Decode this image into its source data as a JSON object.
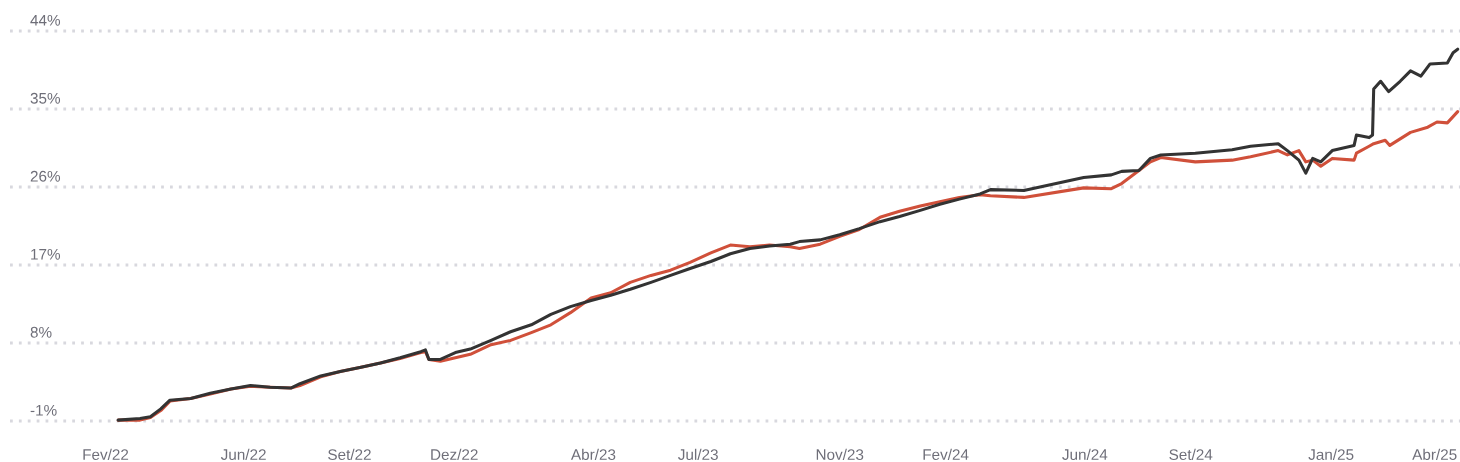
{
  "chart_data": {
    "type": "line",
    "xlim": [
      "2021-11-10",
      "2025-04-23"
    ],
    "xticks": [
      {
        "value": "2022-02-01",
        "label": "Fev/22"
      },
      {
        "value": "2022-06-01",
        "label": "Jun/22"
      },
      {
        "value": "2022-09-01",
        "label": "Set/22"
      },
      {
        "value": "2022-12-01",
        "label": "Dez/22"
      },
      {
        "value": "2023-04-01",
        "label": "Abr/23"
      },
      {
        "value": "2023-07-01",
        "label": "Jul/23"
      },
      {
        "value": "2023-11-01",
        "label": "Nov/23"
      },
      {
        "value": "2024-02-01",
        "label": "Fev/24"
      },
      {
        "value": "2024-06-01",
        "label": "Jun/24"
      },
      {
        "value": "2024-09-01",
        "label": "Set/24"
      },
      {
        "value": "2025-01-01",
        "label": "Jan/25"
      },
      {
        "value": "2025-04-01",
        "label": "Abr/25"
      }
    ],
    "ylim": [
      -1,
      44
    ],
    "yticks": [
      {
        "value": -1,
        "label": "-1%"
      },
      {
        "value": 8,
        "label": "8%"
      },
      {
        "value": 17,
        "label": "17%"
      },
      {
        "value": 26,
        "label": "26%"
      },
      {
        "value": 35,
        "label": "35%"
      },
      {
        "value": 44,
        "label": "44%"
      }
    ],
    "grid": "y",
    "line_style": "solid",
    "series": [
      {
        "color": "#d0503a",
        "x": [
          "2022-02-12",
          "2022-03-03",
          "2022-03-12",
          "2022-03-21",
          "2022-03-29",
          "2022-04-16",
          "2022-05-03",
          "2022-05-21",
          "2022-06-07",
          "2022-06-24",
          "2022-07-12",
          "2022-07-20",
          "2022-08-07",
          "2022-08-24",
          "2022-09-11",
          "2022-09-28",
          "2022-10-15",
          "2022-11-02",
          "2022-11-06",
          "2022-11-09",
          "2022-11-19",
          "2022-12-02",
          "2022-12-15",
          "2023-01-02",
          "2023-01-19",
          "2023-02-06",
          "2023-02-23",
          "2023-03-12",
          "2023-03-30",
          "2023-04-16",
          "2023-05-03",
          "2023-05-21",
          "2023-06-07",
          "2023-06-24",
          "2023-07-12",
          "2023-07-29",
          "2023-08-15",
          "2023-09-01",
          "2023-09-19",
          "2023-09-27",
          "2023-10-15",
          "2023-11-01",
          "2023-11-18",
          "2023-12-06",
          "2023-12-23",
          "2024-01-10",
          "2024-01-27",
          "2024-02-13",
          "2024-03-02",
          "2024-03-11",
          "2024-04-09",
          "2024-05-31",
          "2024-06-24",
          "2024-07-03",
          "2024-07-18",
          "2024-07-28",
          "2024-08-06",
          "2024-09-05",
          "2024-10-07",
          "2024-10-23",
          "2024-11-16",
          "2024-11-24",
          "2024-12-04",
          "2024-12-10",
          "2024-12-16",
          "2024-12-23",
          "2025-01-02",
          "2025-01-21",
          "2025-01-23",
          "2025-02-03",
          "2025-02-07",
          "2025-02-17",
          "2025-02-21",
          "2025-03-11",
          "2025-03-26",
          "2025-04-03",
          "2025-04-12",
          "2025-04-21"
        ],
        "values": [
          -0.9,
          -0.9,
          -0.6,
          0.2,
          1.3,
          1.6,
          2.1,
          2.7,
          3.0,
          2.9,
          2.8,
          3.1,
          4.1,
          4.7,
          5.2,
          5.7,
          6.2,
          6.9,
          7.0,
          6.1,
          5.9,
          6.3,
          6.7,
          7.8,
          8.3,
          9.2,
          10.1,
          11.5,
          13.2,
          13.8,
          15.0,
          15.8,
          16.4,
          17.3,
          18.4,
          19.3,
          19.1,
          19.3,
          19.1,
          18.9,
          19.4,
          20.3,
          21.1,
          22.5,
          23.2,
          23.8,
          24.3,
          24.8,
          25.1,
          25.0,
          24.8,
          25.9,
          25.8,
          26.4,
          27.9,
          28.9,
          29.4,
          28.9,
          29.1,
          29.5,
          30.2,
          29.7,
          30.2,
          28.9,
          29.1,
          28.4,
          29.3,
          29.1,
          29.9,
          30.7,
          31.0,
          31.4,
          30.8,
          32.3,
          32.9,
          33.5,
          33.4,
          34.7
        ]
      },
      {
        "color": "#333333",
        "x": [
          "2022-02-12",
          "2022-03-03",
          "2022-03-12",
          "2022-03-21",
          "2022-03-29",
          "2022-04-16",
          "2022-05-03",
          "2022-05-21",
          "2022-06-07",
          "2022-06-24",
          "2022-07-12",
          "2022-07-20",
          "2022-08-07",
          "2022-08-24",
          "2022-09-11",
          "2022-09-28",
          "2022-10-15",
          "2022-11-02",
          "2022-11-06",
          "2022-11-09",
          "2022-11-19",
          "2022-12-02",
          "2022-12-15",
          "2023-01-02",
          "2023-01-19",
          "2023-02-06",
          "2023-02-23",
          "2023-03-12",
          "2023-03-30",
          "2023-04-16",
          "2023-05-03",
          "2023-05-21",
          "2023-06-07",
          "2023-06-24",
          "2023-07-12",
          "2023-07-29",
          "2023-08-15",
          "2023-09-01",
          "2023-09-19",
          "2023-09-27",
          "2023-10-15",
          "2023-11-01",
          "2023-11-18",
          "2023-12-06",
          "2023-12-23",
          "2024-01-10",
          "2024-01-27",
          "2024-02-13",
          "2024-03-02",
          "2024-03-11",
          "2024-04-09",
          "2024-05-31",
          "2024-06-24",
          "2024-07-03",
          "2024-07-18",
          "2024-07-28",
          "2024-08-06",
          "2024-09-05",
          "2024-10-07",
          "2024-10-23",
          "2024-11-16",
          "2024-11-24",
          "2024-12-04",
          "2024-12-10",
          "2024-12-16",
          "2024-12-23",
          "2025-01-02",
          "2025-01-21",
          "2025-01-23",
          "2025-02-03",
          "2025-02-06",
          "2025-02-07",
          "2025-02-13",
          "2025-02-20",
          "2025-03-02",
          "2025-03-11",
          "2025-03-20",
          "2025-03-28",
          "2025-04-12",
          "2025-04-17",
          "2025-04-21"
        ],
        "values": [
          -0.9,
          -0.7,
          -0.5,
          0.4,
          1.4,
          1.6,
          2.2,
          2.7,
          3.1,
          2.9,
          2.8,
          3.3,
          4.2,
          4.7,
          5.2,
          5.7,
          6.3,
          7.0,
          7.2,
          6.1,
          6.1,
          6.9,
          7.3,
          8.3,
          9.3,
          10.1,
          11.3,
          12.2,
          12.9,
          13.5,
          14.2,
          15.0,
          15.8,
          16.6,
          17.4,
          18.3,
          18.9,
          19.2,
          19.4,
          19.7,
          19.9,
          20.5,
          21.2,
          22.0,
          22.6,
          23.3,
          24.0,
          24.6,
          25.2,
          25.7,
          25.6,
          27.1,
          27.4,
          27.8,
          27.9,
          29.3,
          29.7,
          29.9,
          30.3,
          30.7,
          31.0,
          30.2,
          29.1,
          27.6,
          29.3,
          28.9,
          30.2,
          30.8,
          32.0,
          31.7,
          32.0,
          37.3,
          38.2,
          37.0,
          38.2,
          39.4,
          38.8,
          40.2,
          40.3,
          41.5,
          41.9
        ]
      }
    ]
  }
}
